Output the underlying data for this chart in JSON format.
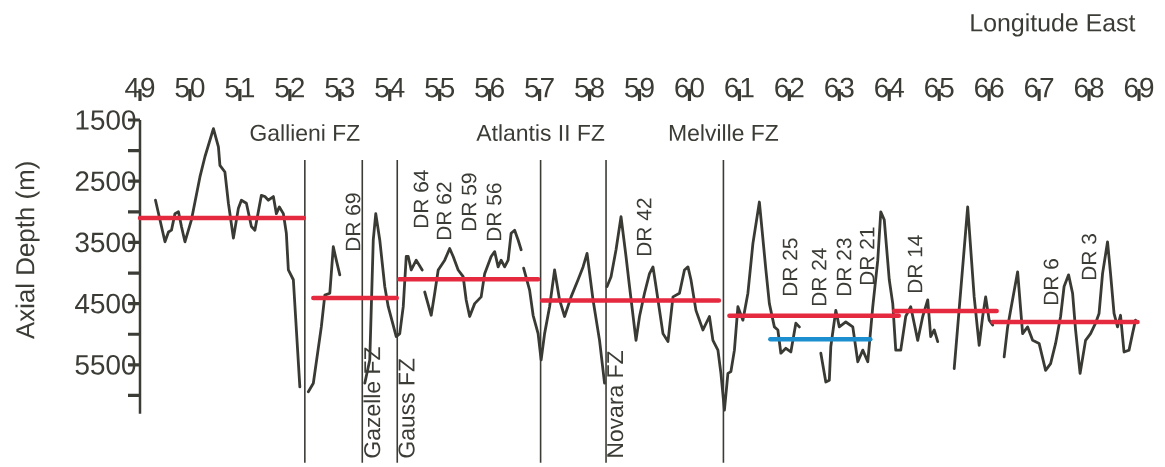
{
  "chart_data": {
    "type": "line",
    "xlabel": "Longitude East",
    "ylabel": "Axial Depth (m)",
    "xlim": [
      49,
      69
    ],
    "xticks": [
      49,
      50,
      51,
      52,
      53,
      54,
      55,
      56,
      57,
      58,
      59,
      60,
      61,
      62,
      63,
      64,
      65,
      66,
      67,
      68,
      69
    ],
    "ylim": [
      6300,
      1500
    ],
    "yticks": [
      1500,
      {
        "value": 2000,
        "label": null
      },
      2500,
      {
        "value": 3000,
        "label": null
      },
      3500,
      {
        "value": 4000,
        "label": null
      },
      4500,
      {
        "value": 5000,
        "label": null
      },
      5500,
      {
        "value": 6000,
        "label": null
      }
    ],
    "series": [
      {
        "color": "#3a3a35",
        "x": [
          49.31,
          49.5,
          49.57,
          49.63,
          49.7,
          49.77,
          49.83,
          49.9,
          50.03,
          50.2,
          50.3,
          50.47,
          50.57,
          50.6,
          50.7,
          50.77,
          50.87,
          50.97,
          51.03,
          51.13,
          51.23,
          51.3,
          51.43,
          51.5,
          51.57,
          51.67,
          51.73,
          51.79,
          51.87,
          51.93,
          51.97,
          52.07,
          52.2,
          52.28,
          52.37,
          52.47,
          52.63,
          52.7,
          52.8,
          52.87,
          52.93,
          53.0,
          53.25,
          53.5,
          53.6,
          53.67,
          53.72,
          53.8,
          53.9,
          53.97,
          54.13,
          54.2,
          54.27,
          54.33,
          54.37,
          54.43,
          54.53,
          54.65,
          54.68,
          54.7,
          54.83,
          54.9,
          54.97,
          55.1,
          55.2,
          55.27,
          55.37,
          55.47,
          55.53,
          55.6,
          55.7,
          55.83,
          55.9,
          56.03,
          56.1,
          56.17,
          56.23,
          56.3,
          56.37,
          56.43,
          56.5,
          56.57,
          56.63,
          56.66,
          56.68,
          56.8,
          56.87,
          56.97,
          57.03,
          57.1,
          57.2,
          57.3,
          57.4,
          57.5,
          57.63,
          57.77,
          57.87,
          57.95,
          58.07,
          58.2,
          58.3,
          58.32,
          58.35,
          58.43,
          58.53,
          58.63,
          58.73,
          58.8,
          58.93,
          59.0,
          59.1,
          59.2,
          59.27,
          59.33,
          59.47,
          59.57,
          59.67,
          59.8,
          59.9,
          59.97,
          60.03,
          60.13,
          60.27,
          60.4,
          60.47,
          60.57,
          60.63,
          60.7,
          60.77,
          60.83,
          60.9,
          60.97,
          61.07,
          61.17,
          61.27,
          61.4,
          61.53,
          61.6,
          61.7,
          61.77,
          61.83,
          61.93,
          62.03,
          62.13,
          62.2,
          62.4,
          62.63,
          62.73,
          62.8,
          62.83,
          62.93,
          63.0,
          63.13,
          63.27,
          63.37,
          63.47,
          63.57,
          63.67,
          63.77,
          63.83,
          63.9,
          64.0,
          64.07,
          64.13,
          64.23,
          64.33,
          64.43,
          64.57,
          64.67,
          64.77,
          64.83,
          64.9,
          64.97,
          65.1,
          65.3,
          65.37,
          65.47,
          65.57,
          65.7,
          65.8,
          65.87,
          65.93,
          66.0,
          66.07,
          66.2,
          66.3,
          66.37,
          66.43,
          66.57,
          66.67,
          66.77,
          66.87,
          67.0,
          67.13,
          67.23,
          67.33,
          67.43,
          67.5,
          67.59,
          67.67,
          67.73,
          67.82,
          67.93,
          68.03,
          68.13,
          68.2,
          68.27,
          68.37,
          68.43,
          68.5,
          68.57,
          68.63,
          68.7,
          68.8,
          68.87,
          68.93
        ],
        "values": [
          2810,
          3490,
          3330,
          3300,
          3030,
          3000,
          3240,
          3490,
          3130,
          2430,
          2100,
          1640,
          1940,
          2240,
          2350,
          2860,
          3430,
          2940,
          2810,
          2860,
          3240,
          3300,
          2730,
          2750,
          2810,
          2750,
          3030,
          2920,
          3030,
          3350,
          3950,
          4110,
          5860,
          null,
          5940,
          5800,
          4880,
          4360,
          4330,
          3570,
          3790,
          4030,
          null,
          5800,
          5420,
          3460,
          3030,
          3460,
          4220,
          4550,
          5040,
          4990,
          4550,
          3730,
          3730,
          3950,
          3790,
          3950,
          null,
          4310,
          4690,
          4330,
          3950,
          3790,
          3600,
          3730,
          3950,
          4060,
          4440,
          4710,
          4500,
          4390,
          4010,
          3730,
          3650,
          3900,
          3790,
          3900,
          3790,
          3350,
          3300,
          3460,
          3620,
          null,
          3920,
          4280,
          4690,
          4990,
          5420,
          4990,
          4550,
          3950,
          4440,
          4710,
          4390,
          4110,
          3900,
          3680,
          4440,
          5100,
          5800,
          null,
          4220,
          4060,
          3620,
          3080,
          3730,
          4220,
          5100,
          4710,
          4330,
          4010,
          3900,
          4220,
          4990,
          5120,
          4390,
          4330,
          3950,
          3900,
          4110,
          4610,
          4930,
          4710,
          5100,
          5260,
          5640,
          6240,
          5640,
          5610,
          5260,
          4550,
          4770,
          4330,
          3520,
          2840,
          3950,
          4500,
          4880,
          4930,
          5310,
          5230,
          5290,
          4820,
          4880,
          null,
          5310,
          5780,
          5750,
          5200,
          4610,
          4880,
          4800,
          4880,
          5450,
          5260,
          5450,
          4550,
          3790,
          3000,
          3130,
          4110,
          4500,
          5260,
          5260,
          4710,
          4550,
          5100,
          4710,
          4440,
          5040,
          4930,
          5120,
          null,
          5560,
          4880,
          3900,
          2920,
          4390,
          5180,
          4710,
          4390,
          4770,
          4850,
          null,
          5370,
          4880,
          4610,
          3980,
          4990,
          4880,
          5100,
          5150,
          5590,
          5480,
          5150,
          4710,
          4220,
          4030,
          4330,
          4930,
          5640,
          5100,
          4990,
          4820,
          4660,
          4010,
          3490,
          4010,
          4660,
          4880,
          4690,
          5290,
          5260,
          4990,
          4770
        ]
      },
      {
        "color": "#e5293f",
        "x": [
          49.0,
          52.28,
          52.37,
          52.47,
          54.14,
          54.16,
          54.19,
          56.97,
          57.01,
          57.05,
          60.59,
          60.7,
          60.8,
          64.19,
          64.15,
          64.1,
          66.15,
          66.1,
          66.07,
          68.97
        ],
        "values": [
          3100,
          3100,
          null,
          4410,
          4410,
          null,
          4100,
          4100,
          null,
          4450,
          4450,
          null,
          4700,
          4700,
          null,
          4620,
          4620,
          null,
          4800,
          4800
        ]
      },
      {
        "color": "#1b8fd0",
        "x": [
          61.62,
          63.62
        ],
        "values": [
          5080,
          5080
        ]
      }
    ],
    "ref_lines": [
      {
        "axis": "x",
        "value": 52.3,
        "label": "Gallieni FZ"
      },
      {
        "axis": "x",
        "value": 57.02,
        "label": "Atlantis II FZ"
      },
      {
        "axis": "x",
        "value": 60.68,
        "label": "Melville FZ"
      },
      {
        "axis": "x",
        "value": 53.45,
        "label": "Gazelle FZ"
      },
      {
        "axis": "x",
        "value": 54.15,
        "label": "Gauss FZ"
      },
      {
        "axis": "x",
        "value": 58.33,
        "label": "Novara FZ"
      }
    ],
    "annotations": [
      "DR 69",
      "DR 64",
      "DR 62",
      "DR 59",
      "DR 56",
      "DR 42",
      "DR 25",
      "DR 24",
      "DR 23",
      "DR 21",
      "DR 14",
      "DR 6",
      "DR 3"
    ]
  }
}
